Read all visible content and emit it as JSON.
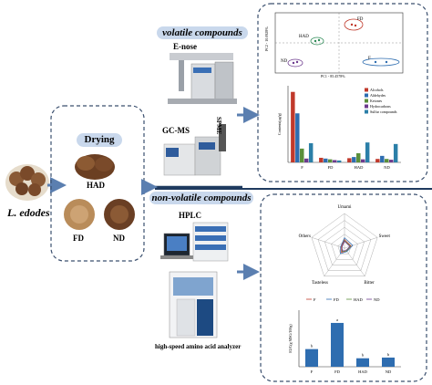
{
  "organism": "L. edodes",
  "drying": {
    "title": "Drying",
    "methods": [
      "HAD",
      "FD",
      "ND"
    ]
  },
  "volatile": {
    "title": "volatile compounds",
    "instruments": [
      "E-nose",
      "GC-MS",
      "SPME"
    ],
    "pca": {
      "xlabel": "PC1 - 85.4578%",
      "ylabel": "PC2 - 10.0928%",
      "groups": [
        "FD",
        "HAD",
        "ND",
        "F"
      ]
    },
    "bar_chart": {
      "ylabel": "Contents(μg/g)",
      "categories": [
        "F",
        "FD",
        "HAD",
        "ND"
      ],
      "legend": [
        "Alcohols",
        "Aldehydes",
        "Ketones",
        "Hydrocarbons",
        "Sulfur compounds"
      ],
      "colors": [
        "#c0392b",
        "#2e6db0",
        "#5a8f3a",
        "#6d3b8e",
        "#2b7fa8"
      ]
    }
  },
  "nonvolatile": {
    "title": "non-volatile compounds",
    "instruments": [
      "HPLC",
      "high-speed amino acid analyzer"
    ],
    "radar": {
      "axes": [
        "Umami",
        "Sweet",
        "Bitter",
        "Tasteless",
        "Others"
      ],
      "legend": [
        "F",
        "FD",
        "HAD",
        "ND"
      ]
    },
    "euc_chart": {
      "ylabel": "EUC(g MSG/100g)",
      "categories": [
        "F",
        "FD",
        "HAD",
        "ND"
      ],
      "letters": [
        "b",
        "a",
        "b",
        "b"
      ],
      "color": "#2e6db0"
    }
  },
  "chart_data": [
    {
      "type": "bar",
      "ylabel": "Contents(μg/g)",
      "categories": [
        "F",
        "FD",
        "HAD",
        "ND"
      ],
      "ylim": [
        0,
        1000
      ],
      "series": [
        {
          "name": "Alcohols",
          "values": [
            920,
            60,
            55,
            45
          ]
        },
        {
          "name": "Aldehydes",
          "values": [
            640,
            50,
            70,
            85
          ]
        },
        {
          "name": "Ketones",
          "values": [
            180,
            40,
            120,
            45
          ]
        },
        {
          "name": "Hydrocarbons",
          "values": [
            50,
            30,
            40,
            35
          ]
        },
        {
          "name": "Sulfur compounds",
          "values": [
            250,
            25,
            260,
            240
          ]
        }
      ]
    },
    {
      "type": "bar",
      "ylabel": "EUC(g MSG/100g)",
      "categories": [
        "F",
        "FD",
        "HAD",
        "ND"
      ],
      "values": [
        25,
        62,
        12,
        13
      ],
      "labels": [
        "b",
        "a",
        "b",
        "b"
      ],
      "ylim": [
        0,
        80
      ]
    }
  ]
}
